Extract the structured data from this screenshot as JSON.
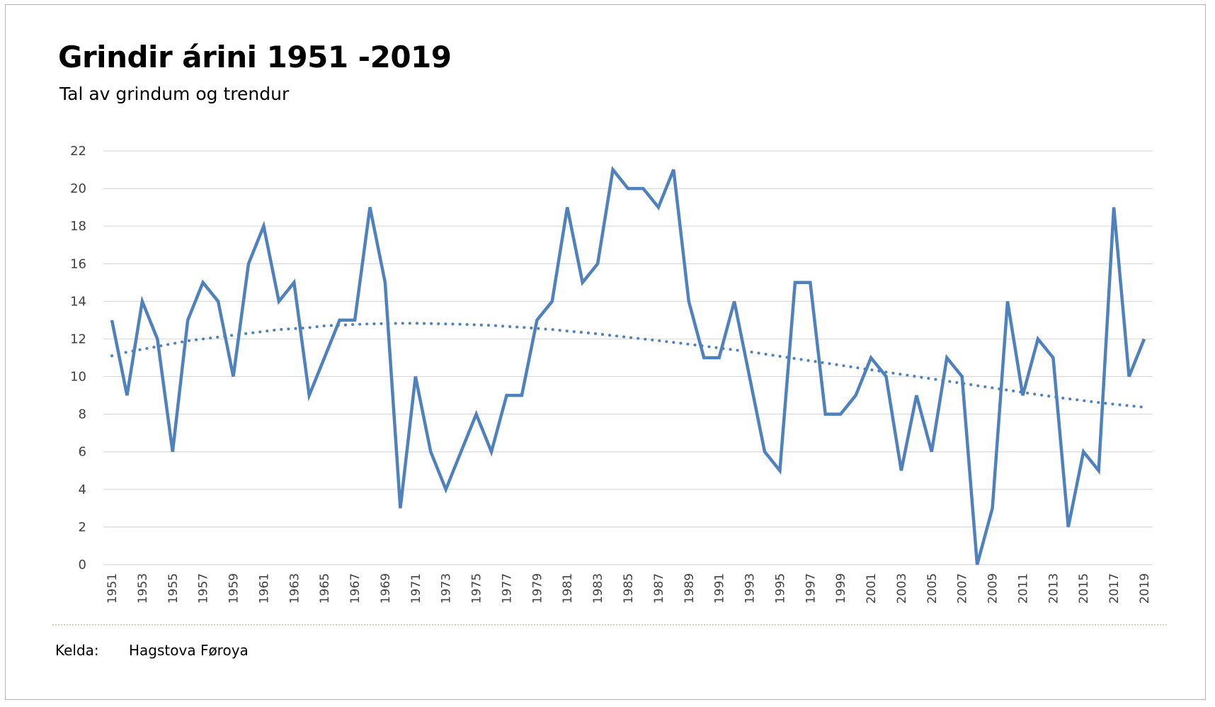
{
  "chart_data": {
    "type": "line",
    "title": "Grindir árini 1951 -2019",
    "subtitle": "Tal av grindum og trendur",
    "xlabel": "",
    "ylabel": "",
    "ylim": [
      0,
      22
    ],
    "yticks": [
      0,
      2,
      4,
      6,
      8,
      10,
      12,
      14,
      16,
      18,
      20,
      22
    ],
    "grid": true,
    "x": [
      1951,
      1952,
      1953,
      1954,
      1955,
      1956,
      1957,
      1958,
      1959,
      1960,
      1961,
      1962,
      1963,
      1964,
      1965,
      1966,
      1967,
      1968,
      1969,
      1970,
      1971,
      1972,
      1973,
      1974,
      1975,
      1976,
      1977,
      1978,
      1979,
      1980,
      1981,
      1982,
      1983,
      1984,
      1985,
      1986,
      1987,
      1988,
      1989,
      1990,
      1991,
      1992,
      1993,
      1994,
      1995,
      1996,
      1997,
      1998,
      1999,
      2000,
      2001,
      2002,
      2003,
      2004,
      2005,
      2006,
      2007,
      2008,
      2009,
      2010,
      2011,
      2012,
      2013,
      2014,
      2015,
      2016,
      2017,
      2018,
      2019
    ],
    "xtick_labels": [
      "1951",
      "1953",
      "1955",
      "1957",
      "1959",
      "1961",
      "1963",
      "1965",
      "1967",
      "1969",
      "1971",
      "1973",
      "1975",
      "1977",
      "1979",
      "1981",
      "1983",
      "1985",
      "1987",
      "1989",
      "1991",
      "1993",
      "1995",
      "1997",
      "1999",
      "2001",
      "2003",
      "2005",
      "2007",
      "2009",
      "2011",
      "2013",
      "2015",
      "2017",
      "2019"
    ],
    "series": [
      {
        "name": "Tal av grindum",
        "style": "solid",
        "color": "#4f81bd",
        "values": [
          13,
          9,
          14,
          12,
          6,
          13,
          15,
          14,
          10,
          16,
          18,
          14,
          15,
          9,
          11,
          13,
          13,
          19,
          15,
          3,
          10,
          6,
          4,
          6,
          8,
          6,
          9,
          9,
          13,
          14,
          19,
          15,
          16,
          21,
          20,
          20,
          19,
          21,
          14,
          11,
          11,
          14,
          10,
          6,
          5,
          15,
          15,
          8,
          8,
          9,
          11,
          10,
          5,
          9,
          6,
          11,
          10,
          0,
          3,
          14,
          9,
          12,
          11,
          2,
          6,
          5,
          19,
          10,
          12
        ]
      },
      {
        "name": "Trendur",
        "style": "dotted",
        "color": "#4f81bd",
        "values": [
          11.1,
          11.3,
          11.45,
          11.6,
          11.75,
          11.9,
          12.0,
          12.1,
          12.2,
          12.3,
          12.4,
          12.5,
          12.55,
          12.6,
          12.7,
          12.73,
          12.77,
          12.8,
          12.82,
          12.83,
          12.83,
          12.82,
          12.8,
          12.78,
          12.75,
          12.72,
          12.67,
          12.62,
          12.56,
          12.5,
          12.42,
          12.35,
          12.27,
          12.18,
          12.09,
          12.0,
          11.91,
          11.82,
          11.72,
          11.62,
          11.52,
          11.42,
          11.32,
          11.2,
          11.08,
          10.96,
          10.84,
          10.72,
          10.6,
          10.48,
          10.36,
          10.24,
          10.12,
          10.0,
          9.88,
          9.76,
          9.64,
          9.52,
          9.4,
          9.28,
          9.16,
          9.04,
          8.93,
          8.82,
          8.72,
          8.62,
          8.53,
          8.45,
          8.37
        ]
      }
    ]
  },
  "source": {
    "label": "Kelda:",
    "value": "Hagstova Føroya"
  }
}
